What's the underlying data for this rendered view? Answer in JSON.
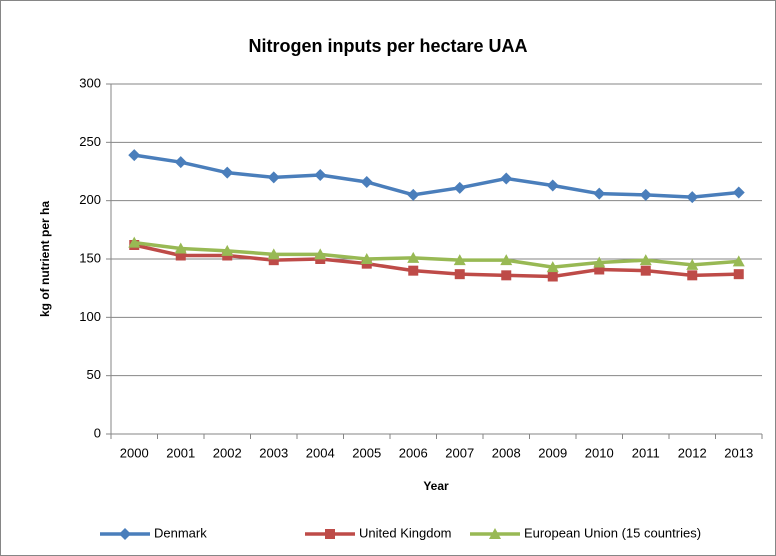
{
  "chart_data": {
    "type": "line",
    "title": "Nitrogen inputs per hectare UAA",
    "x_label": "Year",
    "y_label": "kg of nutrient per ha",
    "categories": [
      "2000",
      "2001",
      "2002",
      "2003",
      "2004",
      "2005",
      "2006",
      "2007",
      "2008",
      "2009",
      "2010",
      "2011",
      "2012",
      "2013"
    ],
    "series": [
      {
        "name": "Denmark",
        "color": "#4a7ebb",
        "marker": "diamond",
        "values": [
          239,
          233,
          224,
          220,
          222,
          216,
          205,
          211,
          219,
          213,
          206,
          205,
          203,
          207
        ]
      },
      {
        "name": "United Kingdom",
        "color": "#be4b48",
        "marker": "square",
        "values": [
          162,
          153,
          153,
          149,
          150,
          146,
          140,
          137,
          136,
          135,
          141,
          140,
          136,
          137
        ]
      },
      {
        "name": "European Union (15 countries)",
        "color": "#98b954",
        "marker": "triangle",
        "values": [
          164,
          159,
          157,
          154,
          154,
          150,
          151,
          149,
          149,
          143,
          147,
          149,
          145,
          148
        ]
      }
    ],
    "ylim": [
      0,
      300
    ],
    "yticks": [
      0,
      50,
      100,
      150,
      200,
      250,
      300
    ],
    "grid": true,
    "legend": "bottom"
  }
}
